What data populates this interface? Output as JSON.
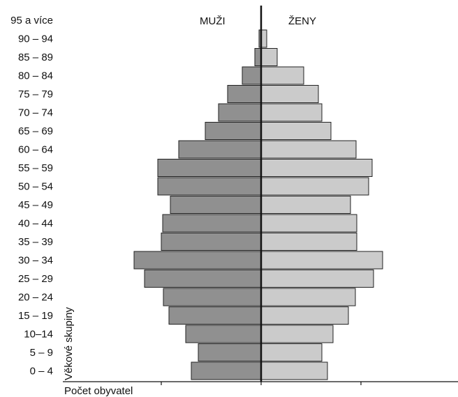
{
  "chart_data": {
    "type": "bar",
    "orientation": "horizontal",
    "layout": "population-pyramid",
    "categories": [
      "0 – 4",
      "5 – 9",
      "10–14",
      "15 – 19",
      "20 – 24",
      "25 – 29",
      "30 – 34",
      "35 – 39",
      "40 – 44",
      "45 – 49",
      "50 – 54",
      "55 – 59",
      "60 – 64",
      "65 – 69",
      "70 – 74",
      "75 – 79",
      "80 – 84",
      "85 – 89",
      "90 – 94",
      "95 a více"
    ],
    "series": [
      {
        "name": "MUŽI",
        "side": "left",
        "color": "#909090",
        "values": [
          100,
          90,
          108,
          132,
          140,
          167,
          182,
          143,
          141,
          130,
          148,
          148,
          118,
          80,
          61,
          48,
          27,
          9,
          3,
          0
        ]
      },
      {
        "name": "ŽENY",
        "side": "right",
        "color": "#cbcbcb",
        "values": [
          95,
          87,
          103,
          125,
          135,
          161,
          174,
          137,
          137,
          128,
          154,
          159,
          136,
          100,
          87,
          82,
          61,
          23,
          8,
          0
        ]
      }
    ],
    "ylabel": "Věkové skupiny",
    "xlabel": "Počet obyvatel",
    "xlim": [
      -240,
      290
    ],
    "x_ticks": [
      -143,
      0,
      143
    ],
    "grid": false,
    "legend": "none"
  }
}
